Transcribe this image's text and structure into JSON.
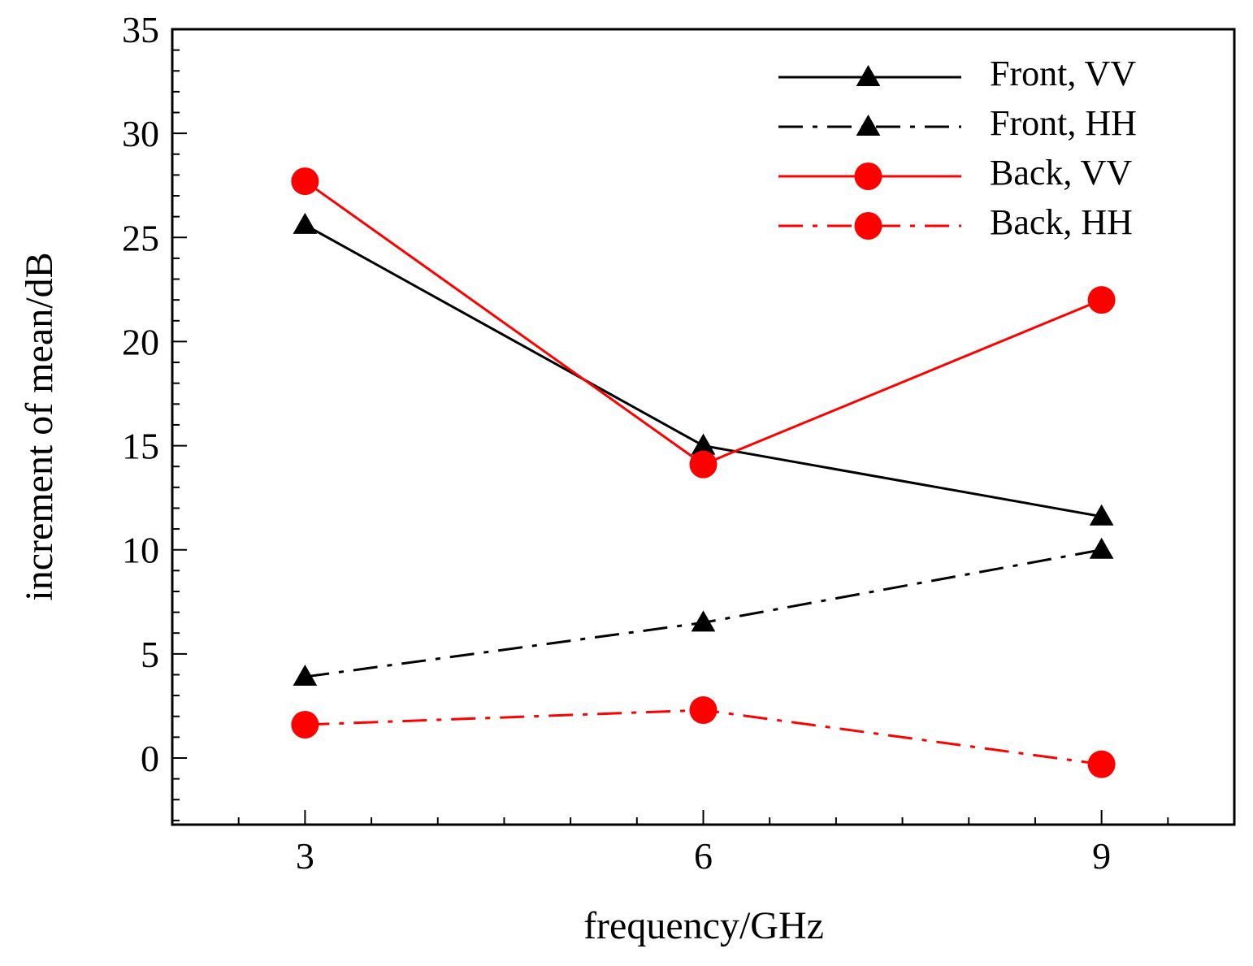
{
  "chart_data": {
    "type": "line",
    "title": "",
    "xlabel": "frequency/GHz",
    "ylabel": "increment of mean/dB",
    "x": [
      3,
      6,
      9
    ],
    "xlim": [
      2,
      10
    ],
    "ylim": [
      -3.2,
      35
    ],
    "xticks": [
      3,
      6,
      9
    ],
    "yticks": [
      0,
      5,
      10,
      15,
      20,
      25,
      30,
      35
    ],
    "grid": false,
    "legend_position": "top-right",
    "series": [
      {
        "name": "Front, VV",
        "values": [
          25.6,
          15.0,
          11.6
        ],
        "color": "#000000",
        "line_style": "solid",
        "marker": "triangle"
      },
      {
        "name": "Front, HH",
        "values": [
          3.9,
          6.5,
          10.0
        ],
        "color": "#000000",
        "line_style": "dash-dot",
        "marker": "triangle"
      },
      {
        "name": "Back, VV",
        "values": [
          27.7,
          14.1,
          22.0
        ],
        "color": "#ff0000",
        "line_style": "solid",
        "marker": "circle"
      },
      {
        "name": "Back, HH",
        "values": [
          1.6,
          2.3,
          -0.3
        ],
        "color": "#ff0000",
        "line_style": "dash-dot",
        "marker": "circle"
      }
    ]
  }
}
